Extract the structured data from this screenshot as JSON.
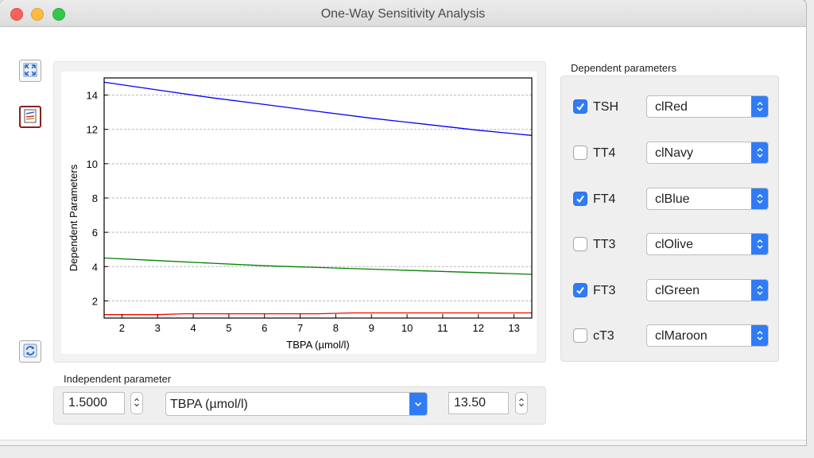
{
  "window": {
    "title": "One-Way Sensitivity Analysis"
  },
  "toolbar": {
    "fit_icon": "fullscreen-icon",
    "plot_icon": "chart-icon",
    "refresh_icon": "refresh-icon"
  },
  "dependent": {
    "title": "Dependent parameters",
    "items": [
      {
        "label": "TSH",
        "checked": true,
        "color_name": "clRed",
        "color": "#ff0000"
      },
      {
        "label": "TT4",
        "checked": false,
        "color_name": "clNavy",
        "color": "#000080"
      },
      {
        "label": "FT4",
        "checked": true,
        "color_name": "clBlue",
        "color": "#0000ff"
      },
      {
        "label": "TT3",
        "checked": false,
        "color_name": "clOlive",
        "color": "#808000"
      },
      {
        "label": "FT3",
        "checked": true,
        "color_name": "clGreen",
        "color": "#008000"
      },
      {
        "label": "cT3",
        "checked": false,
        "color_name": "clMaroon",
        "color": "#800000"
      }
    ]
  },
  "independent": {
    "title": "Independent parameter",
    "min_value": "1.5000",
    "max_value": "13.50",
    "parameter": "TBPA (µmol/l)"
  },
  "chart_data": {
    "type": "line",
    "xlabel": "TBPA (µmol/l)",
    "ylabel": "Dependent Parameters",
    "xlim": [
      1.5,
      13.5
    ],
    "ylim": [
      1.0,
      15.0
    ],
    "xticks": [
      2,
      3,
      4,
      5,
      6,
      7,
      8,
      9,
      10,
      11,
      12,
      13
    ],
    "yticks": [
      2,
      4,
      6,
      8,
      10,
      12,
      14
    ],
    "grid": "horizontal",
    "series": [
      {
        "color": "#0000ff",
        "x": [
          1.5,
          3,
          4.5,
          6,
          7.5,
          9,
          10.5,
          12,
          13.5
        ],
        "y": [
          14.75,
          14.3,
          13.85,
          13.45,
          13.05,
          12.65,
          12.3,
          11.95,
          11.65
        ]
      },
      {
        "color": "#008000",
        "x": [
          1.5,
          3,
          4.5,
          6,
          7.5,
          9,
          10.5,
          12,
          13.5
        ],
        "y": [
          4.5,
          4.35,
          4.2,
          4.05,
          3.95,
          3.85,
          3.75,
          3.65,
          3.55
        ]
      },
      {
        "color": "#ff0000",
        "x": [
          1.5,
          3,
          3.75,
          4.5,
          6,
          7.5,
          8.5,
          9,
          10.5,
          12,
          13.5
        ],
        "y": [
          1.2,
          1.2,
          1.25,
          1.25,
          1.25,
          1.25,
          1.3,
          1.3,
          1.3,
          1.3,
          1.3
        ]
      }
    ]
  }
}
